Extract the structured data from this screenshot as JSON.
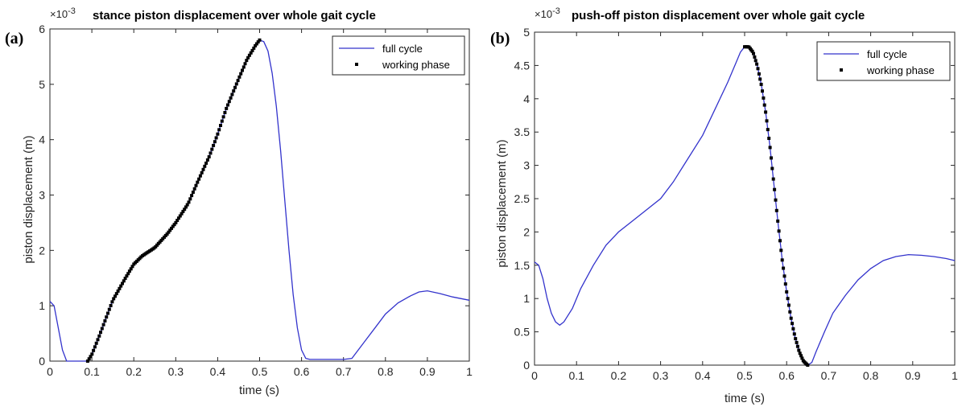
{
  "chart_data": [
    {
      "panel_label": "(a)",
      "type": "line",
      "title": "stance piston displacement over whole gait cycle",
      "xlabel": "time (s)",
      "ylabel": "piston displacement (m)",
      "y_multiplier": "×10",
      "y_exponent": "-3",
      "xlim": [
        0,
        1
      ],
      "ylim": [
        0,
        6
      ],
      "x_ticks": [
        "0",
        "0.1",
        "0.2",
        "0.3",
        "0.4",
        "0.5",
        "0.6",
        "0.7",
        "0.8",
        "0.9",
        "1"
      ],
      "y_ticks": [
        "0",
        "1",
        "2",
        "3",
        "4",
        "5",
        "6"
      ],
      "legend": {
        "position": "top-right",
        "entries": [
          "full cycle",
          "working phase"
        ]
      },
      "series": [
        {
          "name": "full cycle",
          "color": "#3333cc",
          "points": [
            [
              0,
              1.08
            ],
            [
              0.01,
              1.0
            ],
            [
              0.02,
              0.6
            ],
            [
              0.03,
              0.2
            ],
            [
              0.04,
              0.0
            ],
            [
              0.05,
              0.0
            ],
            [
              0.07,
              0.0
            ],
            [
              0.09,
              0.0
            ],
            [
              0.1,
              0.12
            ],
            [
              0.12,
              0.5
            ],
            [
              0.15,
              1.1
            ],
            [
              0.18,
              1.5
            ],
            [
              0.2,
              1.75
            ],
            [
              0.22,
              1.9
            ],
            [
              0.25,
              2.05
            ],
            [
              0.28,
              2.3
            ],
            [
              0.3,
              2.5
            ],
            [
              0.33,
              2.85
            ],
            [
              0.35,
              3.2
            ],
            [
              0.38,
              3.7
            ],
            [
              0.4,
              4.1
            ],
            [
              0.42,
              4.55
            ],
            [
              0.45,
              5.1
            ],
            [
              0.47,
              5.45
            ],
            [
              0.49,
              5.7
            ],
            [
              0.5,
              5.8
            ],
            [
              0.51,
              5.77
            ],
            [
              0.52,
              5.6
            ],
            [
              0.53,
              5.2
            ],
            [
              0.54,
              4.6
            ],
            [
              0.55,
              3.8
            ],
            [
              0.56,
              2.9
            ],
            [
              0.57,
              2.0
            ],
            [
              0.58,
              1.2
            ],
            [
              0.59,
              0.6
            ],
            [
              0.6,
              0.2
            ],
            [
              0.61,
              0.05
            ],
            [
              0.62,
              0.03
            ],
            [
              0.65,
              0.03
            ],
            [
              0.7,
              0.03
            ],
            [
              0.72,
              0.05
            ],
            [
              0.75,
              0.35
            ],
            [
              0.78,
              0.65
            ],
            [
              0.8,
              0.85
            ],
            [
              0.83,
              1.05
            ],
            [
              0.86,
              1.18
            ],
            [
              0.88,
              1.25
            ],
            [
              0.9,
              1.27
            ],
            [
              0.93,
              1.22
            ],
            [
              0.96,
              1.16
            ],
            [
              1.0,
              1.1
            ]
          ]
        },
        {
          "name": "working phase",
          "color": "#000000",
          "marker": "square",
          "x_range": [
            0.09,
            0.5
          ],
          "n_markers": 120
        }
      ]
    },
    {
      "panel_label": "(b)",
      "type": "line",
      "title": "push-off piston displacement over whole gait cycle",
      "xlabel": "time (s)",
      "ylabel": "piston displacement (m)",
      "y_multiplier": "×10",
      "y_exponent": "-3",
      "xlim": [
        0,
        1
      ],
      "ylim": [
        0,
        5
      ],
      "x_ticks": [
        "0",
        "0.1",
        "0.2",
        "0.3",
        "0.4",
        "0.5",
        "0.6",
        "0.7",
        "0.8",
        "0.9",
        "1"
      ],
      "y_ticks": [
        "0",
        "0.5",
        "1",
        "1.5",
        "2",
        "2.5",
        "3",
        "3.5",
        "4",
        "4.5",
        "5"
      ],
      "legend": {
        "position": "top-right",
        "entries": [
          "full cycle",
          "working phase"
        ]
      },
      "series": [
        {
          "name": "full cycle",
          "color": "#3333cc",
          "points": [
            [
              0,
              1.55
            ],
            [
              0.01,
              1.5
            ],
            [
              0.02,
              1.3
            ],
            [
              0.03,
              1.0
            ],
            [
              0.04,
              0.78
            ],
            [
              0.05,
              0.65
            ],
            [
              0.06,
              0.6
            ],
            [
              0.07,
              0.65
            ],
            [
              0.09,
              0.85
            ],
            [
              0.11,
              1.15
            ],
            [
              0.14,
              1.5
            ],
            [
              0.17,
              1.8
            ],
            [
              0.2,
              2.0
            ],
            [
              0.23,
              2.15
            ],
            [
              0.26,
              2.3
            ],
            [
              0.3,
              2.5
            ],
            [
              0.33,
              2.75
            ],
            [
              0.36,
              3.05
            ],
            [
              0.4,
              3.45
            ],
            [
              0.43,
              3.85
            ],
            [
              0.46,
              4.25
            ],
            [
              0.48,
              4.55
            ],
            [
              0.49,
              4.7
            ],
            [
              0.5,
              4.78
            ],
            [
              0.51,
              4.78
            ],
            [
              0.52,
              4.7
            ],
            [
              0.53,
              4.5
            ],
            [
              0.54,
              4.2
            ],
            [
              0.55,
              3.8
            ],
            [
              0.56,
              3.3
            ],
            [
              0.57,
              2.7
            ],
            [
              0.58,
              2.1
            ],
            [
              0.59,
              1.55
            ],
            [
              0.6,
              1.1
            ],
            [
              0.61,
              0.72
            ],
            [
              0.62,
              0.42
            ],
            [
              0.63,
              0.2
            ],
            [
              0.64,
              0.06
            ],
            [
              0.65,
              0.0
            ],
            [
              0.66,
              0.04
            ],
            [
              0.67,
              0.2
            ],
            [
              0.69,
              0.5
            ],
            [
              0.71,
              0.78
            ],
            [
              0.74,
              1.05
            ],
            [
              0.77,
              1.28
            ],
            [
              0.8,
              1.45
            ],
            [
              0.83,
              1.57
            ],
            [
              0.86,
              1.63
            ],
            [
              0.89,
              1.66
            ],
            [
              0.92,
              1.65
            ],
            [
              0.95,
              1.63
            ],
            [
              0.98,
              1.6
            ],
            [
              1.0,
              1.57
            ]
          ]
        },
        {
          "name": "working phase",
          "color": "#000000",
          "marker": "square",
          "x_range": [
            0.5,
            0.65
          ],
          "n_markers": 58
        }
      ]
    }
  ]
}
